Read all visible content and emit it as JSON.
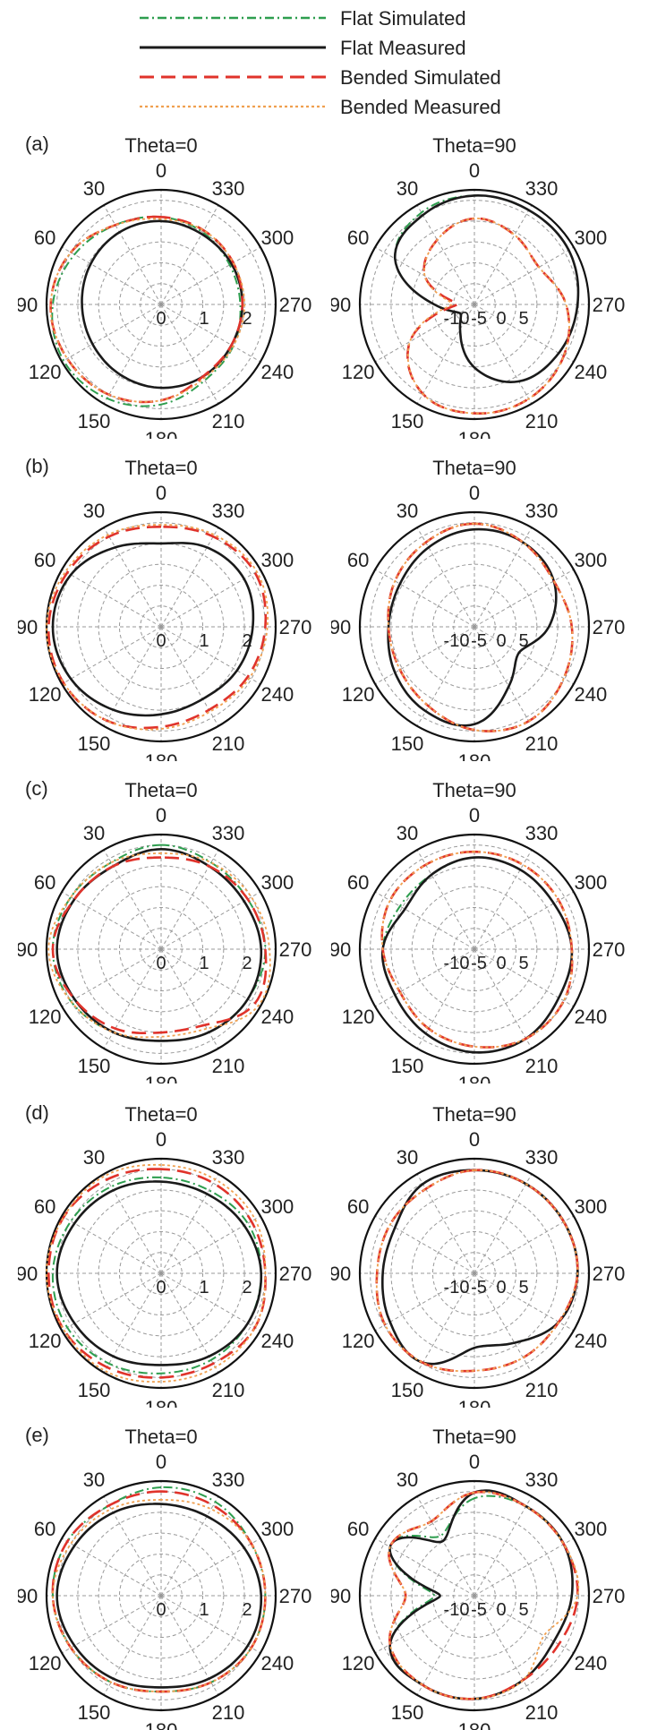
{
  "legend": [
    {
      "key": "flat_sim",
      "label": "Flat Simulated",
      "color": "#2e9e4f",
      "dash": "10,4,2,4",
      "width": 2
    },
    {
      "key": "flat_meas",
      "label": "Flat Measured",
      "color": "#1a1a1a",
      "dash": "",
      "width": 2.6
    },
    {
      "key": "bend_sim",
      "label": "Bended Simulated",
      "color": "#e0332b",
      "dash": "16,8",
      "width": 2.6
    },
    {
      "key": "bend_meas",
      "label": "Bended Measured",
      "color": "#f0a050",
      "dash": "3,3",
      "width": 1.8
    }
  ],
  "angle_labels": [
    "0",
    "30",
    "60",
    "90",
    "120",
    "150",
    "180",
    "210",
    "240",
    "270",
    "300",
    "330"
  ],
  "chart_data": [
    {
      "type": "polar",
      "row": "(a)",
      "title": "Theta=0",
      "radial_ticks": [
        "0",
        "1",
        "2"
      ],
      "series": {
        "flat_sim": [
          2.1,
          2.2,
          2.4,
          2.6,
          2.7,
          2.6,
          2.4,
          2.1,
          2.0,
          1.9,
          1.9,
          2.0
        ],
        "flat_meas": [
          2.0,
          2.0,
          1.95,
          1.9,
          1.9,
          1.95,
          2.0,
          2.0,
          1.95,
          1.95,
          1.95,
          1.95
        ],
        "bend_sim": [
          2.1,
          2.2,
          2.5,
          2.65,
          2.6,
          2.5,
          2.3,
          2.0,
          1.95,
          1.95,
          2.0,
          2.05
        ],
        "bend_meas": [
          2.05,
          2.2,
          2.5,
          2.65,
          2.6,
          2.5,
          2.3,
          2.05,
          2.0,
          2.0,
          2.0,
          2.05
        ]
      }
    },
    {
      "type": "polar",
      "row": "(a)",
      "title": "Theta=90",
      "radial_ticks": [
        "-10",
        "-5",
        "0",
        "5"
      ],
      "series": {
        "flat_sim": [
          4,
          3.5,
          1,
          -8,
          -12,
          -10,
          -4,
          0.5,
          2,
          3,
          4,
          4
        ],
        "flat_meas": [
          4,
          3,
          1,
          -8,
          -12,
          -10,
          -4,
          0.5,
          2,
          3,
          4,
          4
        ],
        "bend_sim": [
          0,
          -2,
          -5,
          -12,
          -2,
          3,
          4,
          4,
          3,
          1,
          -2,
          -1
        ],
        "bend_meas": [
          0,
          -2,
          -5,
          -11,
          -2,
          3,
          4,
          4,
          3,
          1,
          -2,
          -1
        ]
      }
    },
    {
      "type": "polar",
      "row": "(b)",
      "title": "Theta=0",
      "radial_ticks": [
        "0",
        "1",
        "2"
      ],
      "series": {
        "flat_sim": [
          2.0,
          2.2,
          2.5,
          2.6,
          2.5,
          2.3,
          2.1,
          2.0,
          2.1,
          2.2,
          2.3,
          2.2
        ],
        "flat_meas": [
          2.0,
          2.2,
          2.5,
          2.6,
          2.5,
          2.3,
          2.1,
          2.0,
          2.1,
          2.2,
          2.3,
          2.2
        ],
        "bend_sim": [
          2.4,
          2.5,
          2.6,
          2.7,
          2.7,
          2.6,
          2.4,
          2.3,
          2.4,
          2.5,
          2.6,
          2.5
        ],
        "bend_meas": [
          2.45,
          2.55,
          2.65,
          2.75,
          2.7,
          2.6,
          2.45,
          2.35,
          2.45,
          2.55,
          2.65,
          2.55
        ]
      }
    },
    {
      "type": "polar",
      "row": "(b)",
      "title": "Theta=90",
      "radial_ticks": [
        "-10",
        "-5",
        "0",
        "5"
      ],
      "series": {
        "flat_sim": [
          2,
          1,
          0,
          0,
          1,
          2,
          2,
          -3,
          -6,
          -2,
          1,
          2
        ],
        "flat_meas": [
          2,
          1,
          0,
          0,
          1,
          2,
          2,
          -3,
          -6,
          -2,
          1,
          2
        ],
        "bend_sim": [
          3,
          2,
          1,
          0,
          0,
          1,
          3,
          4,
          3,
          2,
          1,
          2
        ],
        "bend_meas": [
          3,
          2,
          1,
          0,
          0,
          1,
          3,
          4,
          3,
          2,
          1,
          2
        ]
      }
    },
    {
      "type": "polar",
      "row": "(c)",
      "title": "Theta=0",
      "radial_ticks": [
        "0",
        "1",
        "2"
      ],
      "series": {
        "flat_sim": [
          2.5,
          2.4,
          2.5,
          2.6,
          2.5,
          2.3,
          2.2,
          2.3,
          2.4,
          2.5,
          2.4,
          2.4
        ],
        "flat_meas": [
          2.4,
          2.3,
          2.4,
          2.5,
          2.4,
          2.3,
          2.2,
          2.3,
          2.4,
          2.4,
          2.3,
          2.3
        ],
        "bend_sim": [
          2.2,
          2.3,
          2.4,
          2.6,
          2.4,
          2.2,
          2.0,
          2.1,
          2.6,
          2.5,
          2.4,
          2.3
        ],
        "bend_meas": [
          2.3,
          2.4,
          2.5,
          2.7,
          2.5,
          2.3,
          2.1,
          2.2,
          2.7,
          2.6,
          2.5,
          2.4
        ]
      }
    },
    {
      "type": "polar",
      "row": "(c)",
      "title": "Theta=90",
      "radial_ticks": [
        "-10",
        "-5",
        "0",
        "5"
      ],
      "series": {
        "flat_sim": [
          1,
          0,
          0,
          1,
          1,
          2,
          3,
          3,
          2,
          2,
          1,
          1
        ],
        "flat_meas": [
          1,
          0,
          -1,
          1,
          1,
          2,
          3,
          3,
          2,
          2,
          1,
          1
        ],
        "bend_sim": [
          2,
          2,
          2,
          1,
          0,
          1,
          2,
          3,
          3,
          2,
          2,
          2
        ],
        "bend_meas": [
          2,
          2,
          2,
          1,
          0,
          1,
          2,
          3,
          3,
          2,
          2,
          2
        ]
      }
    },
    {
      "type": "polar",
      "row": "(d)",
      "title": "Theta=0",
      "radial_ticks": [
        "0",
        "1",
        "2"
      ],
      "series": {
        "flat_sim": [
          2.3,
          2.4,
          2.5,
          2.6,
          2.6,
          2.5,
          2.4,
          2.4,
          2.4,
          2.4,
          2.4,
          2.3
        ],
        "flat_meas": [
          2.2,
          2.3,
          2.4,
          2.5,
          2.4,
          2.3,
          2.2,
          2.3,
          2.4,
          2.4,
          2.3,
          2.2
        ],
        "bend_sim": [
          2.5,
          2.6,
          2.7,
          2.7,
          2.7,
          2.6,
          2.5,
          2.5,
          2.6,
          2.5,
          2.5,
          2.5
        ],
        "bend_meas": [
          2.6,
          2.7,
          2.7,
          2.75,
          2.7,
          2.7,
          2.6,
          2.6,
          2.6,
          2.5,
          2.6,
          2.6
        ]
      }
    },
    {
      "type": "polar",
      "row": "(d)",
      "title": "Theta=90",
      "radial_ticks": [
        "-10",
        "-5",
        "0",
        "5"
      ],
      "series": {
        "flat_sim": [
          3,
          3,
          1,
          1,
          2,
          3,
          -2,
          -1,
          2,
          3,
          3,
          3
        ],
        "flat_meas": [
          3,
          3,
          1,
          1,
          2,
          3,
          -2,
          -1,
          2,
          3,
          3,
          3
        ],
        "bend_sim": [
          3,
          2,
          2,
          2,
          3,
          3,
          2,
          2,
          2,
          3,
          3,
          3
        ],
        "bend_meas": [
          3,
          2,
          2,
          2,
          3,
          3,
          2,
          2,
          2,
          3,
          3,
          3
        ]
      }
    },
    {
      "type": "polar",
      "row": "(e)",
      "title": "Theta=0",
      "radial_ticks": [
        "0",
        "1",
        "2"
      ],
      "series": {
        "flat_sim": [
          2.6,
          2.5,
          2.6,
          2.6,
          2.5,
          2.4,
          2.3,
          2.4,
          2.5,
          2.5,
          2.5,
          2.6
        ],
        "flat_meas": [
          2.2,
          2.3,
          2.4,
          2.5,
          2.4,
          2.3,
          2.2,
          2.3,
          2.4,
          2.4,
          2.3,
          2.2
        ],
        "bend_sim": [
          2.5,
          2.5,
          2.6,
          2.6,
          2.5,
          2.4,
          2.3,
          2.4,
          2.5,
          2.5,
          2.5,
          2.5
        ],
        "bend_meas": [
          2.3,
          2.4,
          2.5,
          2.6,
          2.5,
          2.4,
          2.3,
          2.4,
          2.5,
          2.5,
          2.5,
          2.4
        ]
      }
    },
    {
      "type": "polar",
      "row": "(e)",
      "title": "Theta=90",
      "radial_ticks": [
        "-10",
        "-5",
        "0",
        "5"
      ],
      "series": {
        "flat_sim": [
          2,
          -3,
          2,
          -8,
          2,
          3,
          3,
          2,
          1,
          2,
          3,
          3
        ],
        "flat_meas": [
          3,
          -4,
          2,
          -9,
          2,
          3,
          3,
          2,
          1,
          2,
          3,
          3
        ],
        "bend_sim": [
          3,
          0,
          2,
          -3,
          2,
          3,
          3,
          2,
          2,
          3,
          3,
          3
        ],
        "bend_meas": [
          3,
          0,
          2,
          -3,
          2,
          3,
          3,
          2,
          -1,
          3,
          3,
          3
        ]
      }
    }
  ]
}
